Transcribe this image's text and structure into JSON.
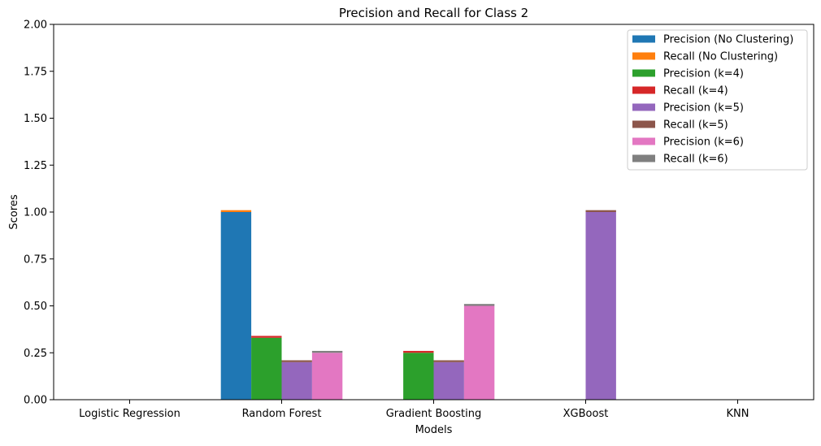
{
  "chart_data": {
    "type": "bar",
    "title": "Precision and Recall for Class 2",
    "xlabel": "Models",
    "ylabel": "Scores",
    "ylim": [
      0,
      2.0
    ],
    "yticks": [
      "0.00",
      "0.25",
      "0.50",
      "0.75",
      "1.00",
      "1.25",
      "1.50",
      "1.75",
      "2.00"
    ],
    "categories": [
      "Logistic Regression",
      "Random Forest",
      "Gradient Boosting",
      "XGBoost",
      "KNN"
    ],
    "grid": false,
    "legend_position": "top-right",
    "groups": [
      {
        "name": "No Clustering",
        "precision_series": 0,
        "recall_series": 1
      },
      {
        "name": "k=4",
        "precision_series": 2,
        "recall_series": 3
      },
      {
        "name": "k=5",
        "precision_series": 4,
        "recall_series": 5
      },
      {
        "name": "k=6",
        "precision_series": 6,
        "recall_series": 7
      }
    ],
    "series": [
      {
        "name": "Precision (No Clustering)",
        "color": "#1f77b4",
        "values": [
          0,
          1.0,
          0,
          0,
          0
        ]
      },
      {
        "name": "Recall (No Clustering)",
        "color": "#ff7f0e",
        "values": [
          0,
          0.01,
          0,
          0,
          0
        ]
      },
      {
        "name": "Precision (k=4)",
        "color": "#2ca02c",
        "values": [
          0,
          0.33,
          0.25,
          0,
          0
        ]
      },
      {
        "name": "Recall (k=4)",
        "color": "#d62728",
        "values": [
          0,
          0.01,
          0.01,
          0,
          0
        ]
      },
      {
        "name": "Precision (k=5)",
        "color": "#9467bd",
        "values": [
          0,
          0.2,
          0.2,
          1.0,
          0
        ]
      },
      {
        "name": "Recall (k=5)",
        "color": "#8c564b",
        "values": [
          0,
          0.01,
          0.01,
          0.01,
          0
        ]
      },
      {
        "name": "Precision (k=6)",
        "color": "#e377c2",
        "values": [
          0,
          0.25,
          0.5,
          0,
          0
        ]
      },
      {
        "name": "Recall (k=6)",
        "color": "#7f7f7f",
        "values": [
          0,
          0.01,
          0.01,
          0,
          0
        ]
      }
    ]
  }
}
